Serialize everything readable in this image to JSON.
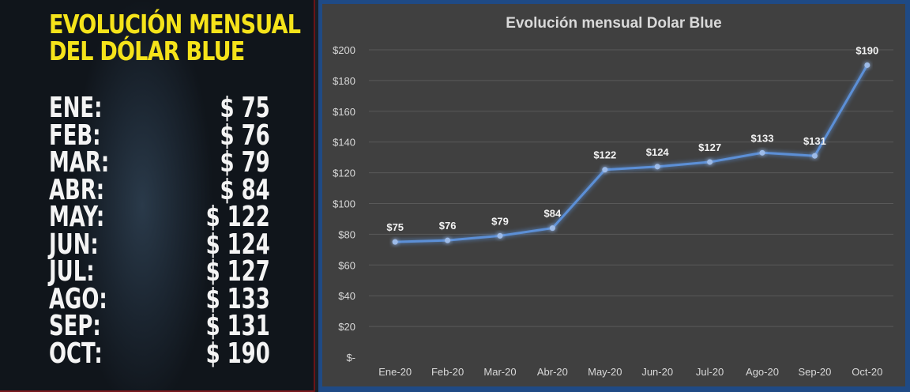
{
  "left_panel": {
    "title_line1": "EVOLUCIÓN MENSUAL",
    "title_line2": "DEL DÓLAR BLUE",
    "rows": [
      {
        "month": "ENE:",
        "value": "$ 75"
      },
      {
        "month": "FEB:",
        "value": "$ 76"
      },
      {
        "month": "MAR:",
        "value": "$ 79"
      },
      {
        "month": "ABR:",
        "value": "$ 84"
      },
      {
        "month": "MAY:",
        "value": "$ 122"
      },
      {
        "month": "JUN:",
        "value": "$ 124"
      },
      {
        "month": "JUL:",
        "value": "$ 127"
      },
      {
        "month": "AGO:",
        "value": "$ 133"
      },
      {
        "month": "SEP:",
        "value": "$ 131"
      },
      {
        "month": "OCT:",
        "value": "$ 190"
      }
    ],
    "colors": {
      "title": "#f5e31a",
      "text": "#f4f4f4"
    }
  },
  "chart": {
    "title": "Evolución mensual Dolar Blue",
    "colors": {
      "background": "#404040",
      "frame": "#1f4a85",
      "line": "#5b8fd6",
      "marker": "#9dbbe8",
      "grid": "#595959",
      "text": "#d9d9d9"
    }
  },
  "chart_data": {
    "type": "line",
    "title": "Evolución mensual Dolar Blue",
    "xlabel": "",
    "ylabel": "",
    "categories": [
      "Ene-20",
      "Feb-20",
      "Mar-20",
      "Abr-20",
      "May-20",
      "Jun-20",
      "Jul-20",
      "Ago-20",
      "Sep-20",
      "Oct-20"
    ],
    "values": [
      75,
      76,
      79,
      84,
      122,
      124,
      127,
      133,
      131,
      190
    ],
    "data_labels": [
      "$75",
      "$76",
      "$79",
      "$84",
      "$122",
      "$124",
      "$127",
      "$133",
      "$131",
      "$190"
    ],
    "ylim": [
      0,
      200
    ],
    "yticks": [
      0,
      20,
      40,
      60,
      80,
      100,
      120,
      140,
      160,
      180,
      200
    ],
    "ytick_labels": [
      "$-",
      "$20",
      "$40",
      "$60",
      "$80",
      "$100",
      "$120",
      "$140",
      "$160",
      "$180",
      "$200"
    ],
    "grid": true,
    "legend": "none"
  }
}
